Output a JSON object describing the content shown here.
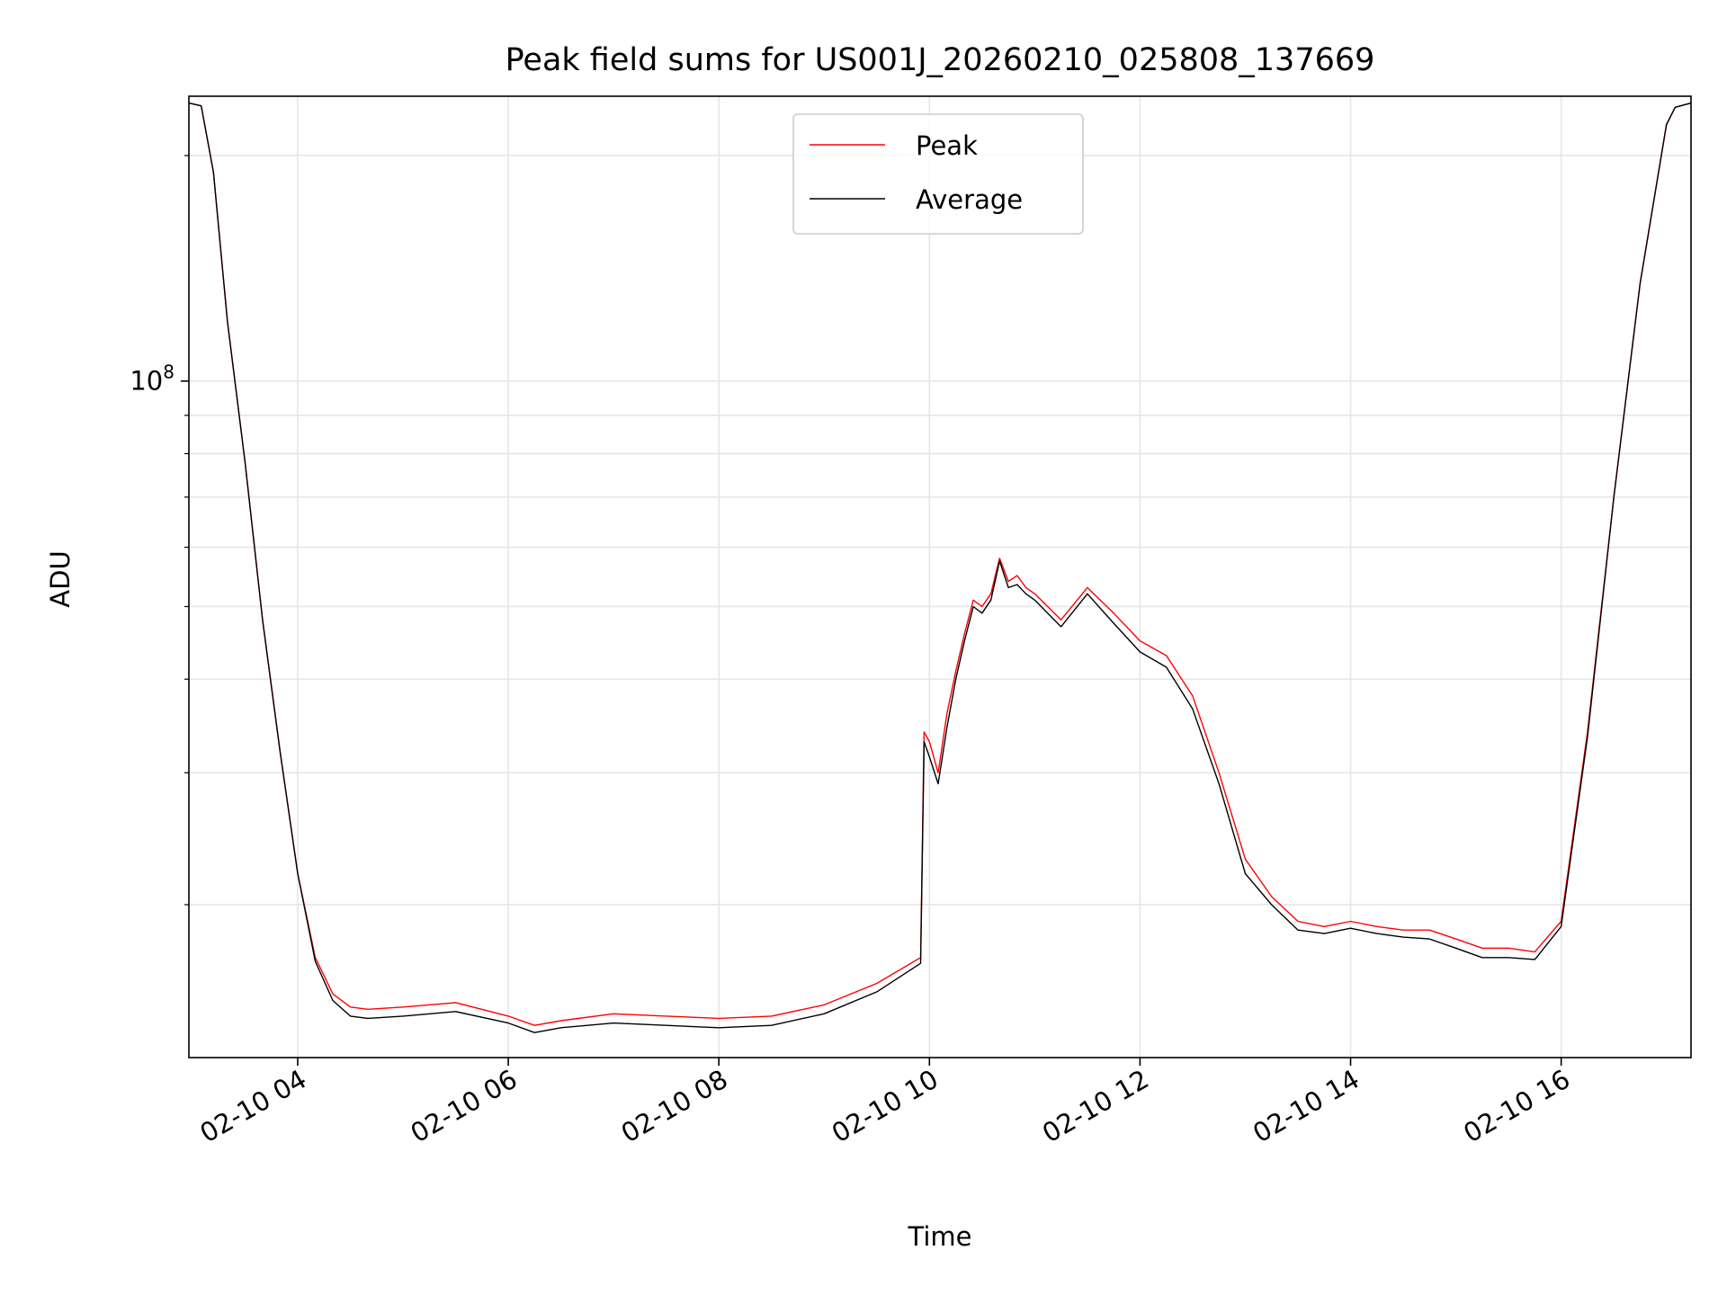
{
  "chart_data": {
    "type": "line",
    "title": "Peak field sums for US001J_20260210_025808_137669",
    "xlabel": "Time",
    "ylabel": "ADU",
    "yscale": "log",
    "grid": true,
    "legend_position": "upper center",
    "xlim": [
      "2026-02-10 02:58",
      "2026-02-10 17:14"
    ],
    "ylim": [
      12500000,
      240000000
    ],
    "x_ticks": [
      {
        "value": "2026-02-10 04:00",
        "label": "02-10 04"
      },
      {
        "value": "2026-02-10 06:00",
        "label": "02-10 06"
      },
      {
        "value": "2026-02-10 08:00",
        "label": "02-10 08"
      },
      {
        "value": "2026-02-10 10:00",
        "label": "02-10 10"
      },
      {
        "value": "2026-02-10 12:00",
        "label": "02-10 12"
      },
      {
        "value": "2026-02-10 14:00",
        "label": "02-10 14"
      },
      {
        "value": "2026-02-10 16:00",
        "label": "02-10 16"
      }
    ],
    "y_major_ticks": [
      {
        "value": 100000000,
        "base": "10",
        "exponent": "8"
      }
    ],
    "y_minor_ticks": [
      20000000,
      30000000,
      40000000,
      50000000,
      60000000,
      70000000,
      80000000,
      90000000,
      200000000
    ],
    "series": [
      {
        "name": "Peak",
        "color": "#ff0000",
        "x": [
          "2026-02-10 02:58",
          "2026-02-10 03:05",
          "2026-02-10 03:12",
          "2026-02-10 03:20",
          "2026-02-10 03:30",
          "2026-02-10 03:40",
          "2026-02-10 03:50",
          "2026-02-10 04:00",
          "2026-02-10 04:10",
          "2026-02-10 04:20",
          "2026-02-10 04:30",
          "2026-02-10 04:40",
          "2026-02-10 05:00",
          "2026-02-10 05:30",
          "2026-02-10 06:00",
          "2026-02-10 06:15",
          "2026-02-10 06:30",
          "2026-02-10 07:00",
          "2026-02-10 07:30",
          "2026-02-10 08:00",
          "2026-02-10 08:30",
          "2026-02-10 09:00",
          "2026-02-10 09:30",
          "2026-02-10 09:55",
          "2026-02-10 09:57",
          "2026-02-10 10:00",
          "2026-02-10 10:05",
          "2026-02-10 10:10",
          "2026-02-10 10:15",
          "2026-02-10 10:20",
          "2026-02-10 10:25",
          "2026-02-10 10:30",
          "2026-02-10 10:35",
          "2026-02-10 10:40",
          "2026-02-10 10:45",
          "2026-02-10 10:50",
          "2026-02-10 10:55",
          "2026-02-10 11:00",
          "2026-02-10 11:15",
          "2026-02-10 11:30",
          "2026-02-10 11:45",
          "2026-02-10 12:00",
          "2026-02-10 12:15",
          "2026-02-10 12:30",
          "2026-02-10 12:45",
          "2026-02-10 13:00",
          "2026-02-10 13:15",
          "2026-02-10 13:30",
          "2026-02-10 13:45",
          "2026-02-10 14:00",
          "2026-02-10 14:15",
          "2026-02-10 14:30",
          "2026-02-10 14:45",
          "2026-02-10 15:00",
          "2026-02-10 15:15",
          "2026-02-10 15:30",
          "2026-02-10 15:45",
          "2026-02-10 16:00",
          "2026-02-10 16:15",
          "2026-02-10 16:30",
          "2026-02-10 16:45",
          "2026-02-10 17:00",
          "2026-02-10 17:05",
          "2026-02-10 17:14"
        ],
        "values": [
          235000000,
          233000000,
          190000000,
          120000000,
          78000000,
          48000000,
          32000000,
          22000000,
          17000000,
          15200000,
          14600000,
          14500000,
          14600000,
          14800000,
          14200000,
          13800000,
          14000000,
          14300000,
          14200000,
          14100000,
          14200000,
          14700000,
          15700000,
          17000000,
          34000000,
          33000000,
          30000000,
          36000000,
          41000000,
          46000000,
          51000000,
          50000000,
          52000000,
          58000000,
          54000000,
          55000000,
          53000000,
          52000000,
          48000000,
          53000000,
          49000000,
          45000000,
          43000000,
          38000000,
          30000000,
          23000000,
          20500000,
          19000000,
          18700000,
          19000000,
          18700000,
          18500000,
          18500000,
          18000000,
          17500000,
          17500000,
          17300000,
          19000000,
          34000000,
          70000000,
          135000000,
          220000000,
          232000000,
          235000000
        ]
      },
      {
        "name": "Average",
        "color": "#000000",
        "x": [
          "2026-02-10 02:58",
          "2026-02-10 03:05",
          "2026-02-10 03:12",
          "2026-02-10 03:20",
          "2026-02-10 03:30",
          "2026-02-10 03:40",
          "2026-02-10 03:50",
          "2026-02-10 04:00",
          "2026-02-10 04:10",
          "2026-02-10 04:20",
          "2026-02-10 04:30",
          "2026-02-10 04:40",
          "2026-02-10 05:00",
          "2026-02-10 05:30",
          "2026-02-10 06:00",
          "2026-02-10 06:15",
          "2026-02-10 06:30",
          "2026-02-10 07:00",
          "2026-02-10 07:30",
          "2026-02-10 08:00",
          "2026-02-10 08:30",
          "2026-02-10 09:00",
          "2026-02-10 09:30",
          "2026-02-10 09:55",
          "2026-02-10 09:57",
          "2026-02-10 10:00",
          "2026-02-10 10:05",
          "2026-02-10 10:10",
          "2026-02-10 10:15",
          "2026-02-10 10:20",
          "2026-02-10 10:25",
          "2026-02-10 10:30",
          "2026-02-10 10:35",
          "2026-02-10 10:40",
          "2026-02-10 10:45",
          "2026-02-10 10:50",
          "2026-02-10 10:55",
          "2026-02-10 11:00",
          "2026-02-10 11:15",
          "2026-02-10 11:30",
          "2026-02-10 11:45",
          "2026-02-10 12:00",
          "2026-02-10 12:15",
          "2026-02-10 12:30",
          "2026-02-10 12:45",
          "2026-02-10 13:00",
          "2026-02-10 13:15",
          "2026-02-10 13:30",
          "2026-02-10 13:45",
          "2026-02-10 14:00",
          "2026-02-10 14:15",
          "2026-02-10 14:30",
          "2026-02-10 14:45",
          "2026-02-10 15:00",
          "2026-02-10 15:15",
          "2026-02-10 15:30",
          "2026-02-10 15:45",
          "2026-02-10 16:00",
          "2026-02-10 16:15",
          "2026-02-10 16:30",
          "2026-02-10 16:45",
          "2026-02-10 17:00",
          "2026-02-10 17:05",
          "2026-02-10 17:14"
        ],
        "values": [
          235000000,
          233000000,
          190000000,
          120000000,
          78000000,
          48000000,
          32000000,
          22000000,
          16800000,
          14900000,
          14200000,
          14100000,
          14200000,
          14400000,
          13900000,
          13500000,
          13700000,
          13900000,
          13800000,
          13700000,
          13800000,
          14300000,
          15300000,
          16700000,
          33000000,
          31500000,
          29000000,
          34500000,
          40000000,
          45000000,
          50000000,
          49000000,
          51000000,
          57500000,
          53000000,
          53500000,
          52000000,
          51000000,
          47000000,
          52000000,
          47500000,
          43500000,
          41500000,
          36500000,
          29000000,
          22000000,
          20000000,
          18500000,
          18300000,
          18600000,
          18300000,
          18100000,
          18000000,
          17500000,
          17000000,
          17000000,
          16900000,
          18700000,
          33500000,
          70000000,
          135000000,
          220000000,
          232000000,
          235000000
        ]
      }
    ]
  }
}
